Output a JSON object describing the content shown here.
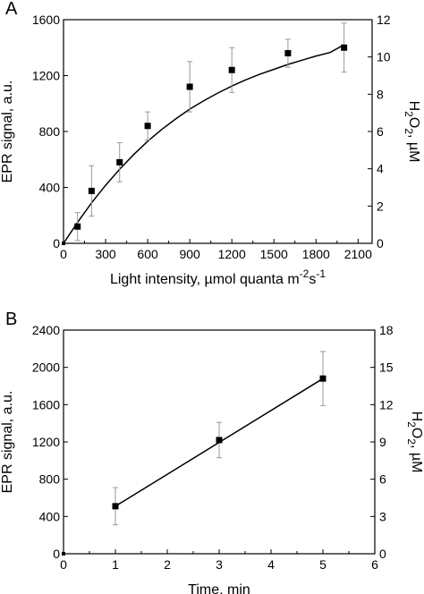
{
  "chart_data": [
    {
      "panel_label": "A",
      "type": "scatter",
      "xlabel": "Light intensity, µmol quanta m",
      "xlabel_sup1": "-2",
      "xlabel_mid": "s",
      "xlabel_sup2": "-1",
      "ylabel": "EPR signal, a.u.",
      "y2label_h": "H",
      "y2label_sub1": "2",
      "y2label_o": "O",
      "y2label_sub2": "2",
      "y2label_unit": ", µM",
      "xlim": [
        0,
        2200
      ],
      "ylim": [
        0,
        1600
      ],
      "y2lim": [
        0,
        12
      ],
      "xticks": [
        0,
        300,
        600,
        900,
        1200,
        1500,
        1800,
        2100
      ],
      "yticks": [
        0,
        400,
        800,
        1200,
        1600
      ],
      "y2ticks": [
        0,
        2,
        4,
        6,
        8,
        10,
        12
      ],
      "grid": false,
      "series": [
        {
          "marker": "square",
          "fit": "saturating-curve",
          "points": [
            {
              "x": 0,
              "y": 0,
              "err": 0
            },
            {
              "x": 100,
              "y": 120,
              "err": 100
            },
            {
              "x": 200,
              "y": 375,
              "err": 180
            },
            {
              "x": 400,
              "y": 580,
              "err": 140
            },
            {
              "x": 600,
              "y": 840,
              "err": 100
            },
            {
              "x": 900,
              "y": 1120,
              "err": 180
            },
            {
              "x": 1200,
              "y": 1240,
              "err": 160
            },
            {
              "x": 1600,
              "y": 1360,
              "err": 100
            },
            {
              "x": 2000,
              "y": 1400,
              "err": 175
            }
          ]
        }
      ],
      "fit_curve": [
        [
          0,
          0
        ],
        [
          100,
          150
        ],
        [
          200,
          290
        ],
        [
          300,
          415
        ],
        [
          400,
          530
        ],
        [
          500,
          635
        ],
        [
          600,
          730
        ],
        [
          700,
          815
        ],
        [
          800,
          890
        ],
        [
          900,
          960
        ],
        [
          1000,
          1020
        ],
        [
          1100,
          1075
        ],
        [
          1200,
          1125
        ],
        [
          1300,
          1170
        ],
        [
          1400,
          1210
        ],
        [
          1500,
          1245
        ],
        [
          1600,
          1280
        ],
        [
          1700,
          1310
        ],
        [
          1800,
          1340
        ],
        [
          1900,
          1365
        ],
        [
          2000,
          1420
        ]
      ]
    },
    {
      "panel_label": "B",
      "type": "line",
      "xlabel": "Time, min",
      "ylabel": "EPR signal, a.u.",
      "y2label_h": "H",
      "y2label_sub1": "2",
      "y2label_o": "O",
      "y2label_sub2": "2",
      "y2label_unit": ", µM",
      "xlim": [
        0,
        6
      ],
      "ylim": [
        0,
        2400
      ],
      "y2lim": [
        0,
        18
      ],
      "xticks": [
        0,
        1,
        2,
        3,
        4,
        5,
        6
      ],
      "yticks": [
        0,
        400,
        800,
        1200,
        1600,
        2000,
        2400
      ],
      "y2ticks": [
        0,
        3,
        6,
        9,
        12,
        15,
        18
      ],
      "grid": false,
      "series": [
        {
          "marker": "square",
          "fit": "linear",
          "points": [
            {
              "x": 0,
              "y": 0,
              "err": 0
            },
            {
              "x": 1,
              "y": 510,
              "err": 200
            },
            {
              "x": 3,
              "y": 1220,
              "err": 190
            },
            {
              "x": 5,
              "y": 1880,
              "err": 290
            }
          ]
        }
      ],
      "fit_line": [
        [
          1,
          510
        ],
        [
          5,
          1880
        ]
      ]
    }
  ]
}
